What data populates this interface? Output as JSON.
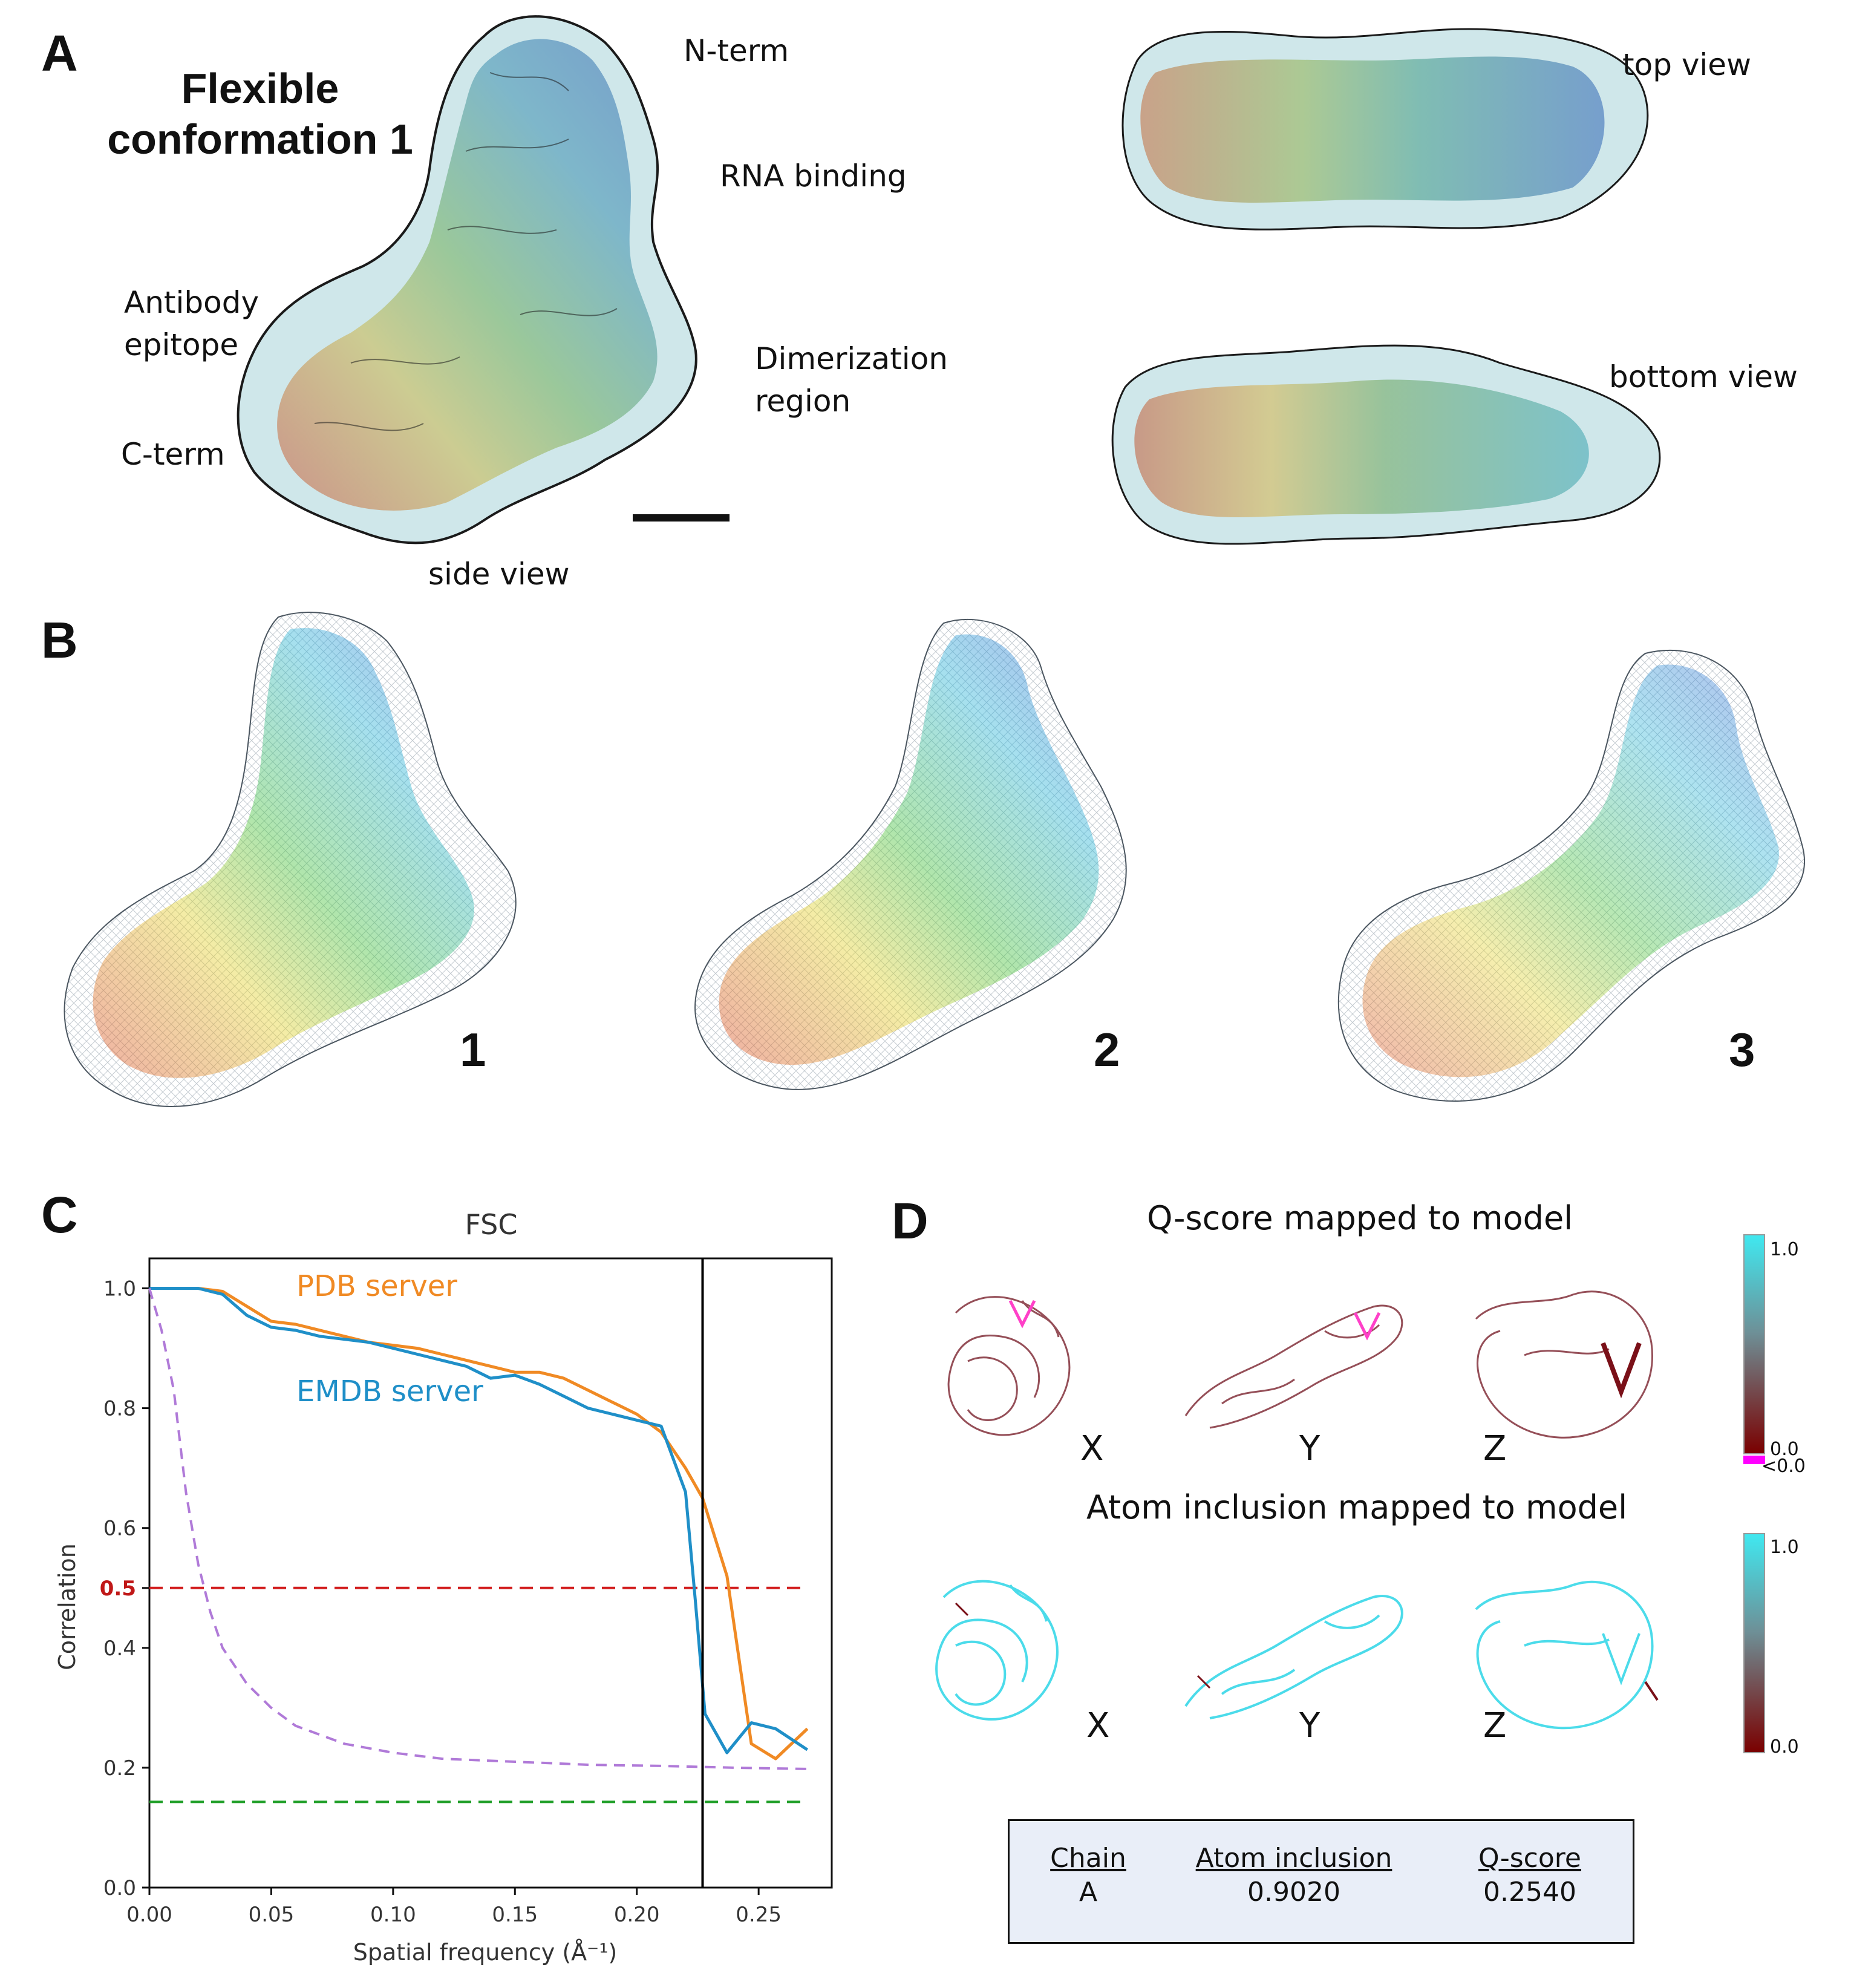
{
  "panel_a": {
    "letter": "A",
    "title": [
      "Flexible",
      "conformation 1"
    ],
    "labels": {
      "n_term": "N-term",
      "rna_binding": "RNA binding",
      "antibody_epitope": [
        "Antibody",
        "epitope"
      ],
      "dimerization_region": [
        "Dimerization",
        "region"
      ],
      "c_term": "C-term",
      "side_view": "side view",
      "top_view": "top view",
      "bottom_view": "bottom view"
    }
  },
  "panel_b": {
    "letter": "B",
    "conformations": [
      "1",
      "2",
      "3"
    ]
  },
  "panel_c": {
    "letter": "C"
  },
  "panel_d": {
    "letter": "D",
    "qscore_title": "Q-score mapped to model",
    "atom_inclusion_title": "Atom inclusion mapped to model",
    "axes": [
      "X",
      "Y",
      "Z"
    ],
    "qscore_colorbar": {
      "max": "1.0",
      "min": "0.0",
      "below": "<0.0",
      "top_color": "#40e8f0",
      "bottom_color": "#7a0000",
      "below_color": "#ff00ff"
    },
    "atom_colorbar": {
      "max": "1.0",
      "min": "0.0",
      "top_color": "#40e8f0",
      "bottom_color": "#7a0000"
    },
    "table": {
      "headers": [
        "Chain",
        "Atom inclusion",
        "Q-score"
      ],
      "rows": [
        [
          "A",
          "0.9020",
          "0.2540"
        ]
      ]
    }
  },
  "chart_data": {
    "type": "line",
    "title": "FSC",
    "xlabel": "Spatial frequency (Å⁻¹)",
    "ylabel": "Correlation",
    "xlim": [
      0,
      0.28
    ],
    "ylim": [
      0,
      1.05
    ],
    "xticks": [
      "0.00",
      "0.05",
      "0.10",
      "0.15",
      "0.20",
      "0.25"
    ],
    "yticks": [
      "0.0",
      "0.2",
      "0.4",
      "0.5",
      "0.6",
      "0.8",
      "1.0"
    ],
    "highlight_ytick": "0.5",
    "series": [
      {
        "name": "PDB server",
        "color": "#f08a24",
        "style": "solid",
        "x": [
          0,
          0.01,
          0.02,
          0.03,
          0.04,
          0.05,
          0.06,
          0.07,
          0.08,
          0.09,
          0.1,
          0.11,
          0.12,
          0.13,
          0.14,
          0.15,
          0.16,
          0.17,
          0.18,
          0.19,
          0.2,
          0.21,
          0.22,
          0.227,
          0.237,
          0.247,
          0.257,
          0.27
        ],
        "y": [
          1.0,
          1.0,
          1.0,
          0.995,
          0.97,
          0.945,
          0.94,
          0.93,
          0.92,
          0.91,
          0.905,
          0.9,
          0.89,
          0.88,
          0.87,
          0.86,
          0.86,
          0.85,
          0.83,
          0.81,
          0.79,
          0.76,
          0.7,
          0.65,
          0.52,
          0.24,
          0.215,
          0.265
        ]
      },
      {
        "name": "EMDB server",
        "color": "#1f8fc8",
        "style": "solid",
        "x": [
          0,
          0.01,
          0.02,
          0.03,
          0.04,
          0.05,
          0.06,
          0.07,
          0.08,
          0.09,
          0.1,
          0.11,
          0.12,
          0.13,
          0.14,
          0.15,
          0.16,
          0.17,
          0.18,
          0.19,
          0.2,
          0.21,
          0.22,
          0.224,
          0.228,
          0.237,
          0.247,
          0.257,
          0.27
        ],
        "y": [
          1.0,
          1.0,
          1.0,
          0.99,
          0.955,
          0.935,
          0.93,
          0.92,
          0.915,
          0.91,
          0.9,
          0.89,
          0.88,
          0.87,
          0.85,
          0.855,
          0.84,
          0.82,
          0.8,
          0.79,
          0.78,
          0.77,
          0.66,
          0.48,
          0.29,
          0.225,
          0.275,
          0.265,
          0.23
        ]
      },
      {
        "name": "",
        "color": "#b07ad8",
        "style": "dashed",
        "x": [
          0,
          0.005,
          0.01,
          0.015,
          0.02,
          0.025,
          0.03,
          0.04,
          0.05,
          0.06,
          0.08,
          0.1,
          0.12,
          0.15,
          0.18,
          0.21,
          0.24,
          0.27
        ],
        "y": [
          1.0,
          0.93,
          0.83,
          0.66,
          0.54,
          0.46,
          0.4,
          0.34,
          0.3,
          0.27,
          0.24,
          0.225,
          0.215,
          0.21,
          0.205,
          0.203,
          0.2,
          0.198
        ]
      }
    ],
    "hlines": [
      {
        "y": 0.5,
        "color": "#d21f1f",
        "style": "dashed"
      },
      {
        "y": 0.143,
        "color": "#22a02a",
        "style": "dashed"
      }
    ],
    "vlines": [
      {
        "x": 0.227,
        "color": "#000000",
        "style": "solid"
      }
    ]
  }
}
